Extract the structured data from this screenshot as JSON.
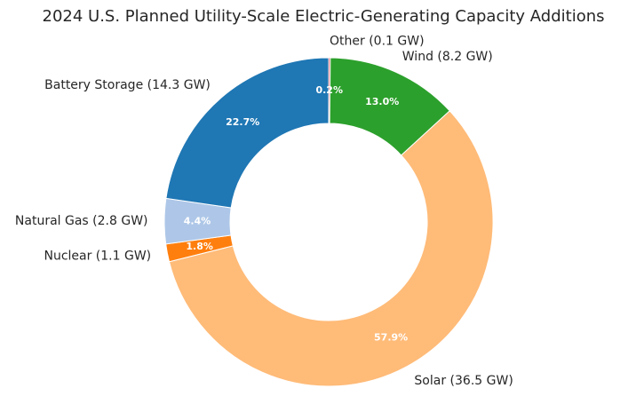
{
  "chart_data": {
    "type": "pie",
    "donut": true,
    "title": "2024 U.S. Planned Utility-Scale Electric-Generating Capacity Additions",
    "start_angle_deg": 90,
    "direction": "clockwise",
    "slices": [
      {
        "label": "Other (0.1 GW)",
        "value": 0.1,
        "pct_label": "0.2%",
        "color": "#d62728"
      },
      {
        "label": "Wind (8.2 GW)",
        "value": 8.2,
        "pct_label": "13.0%",
        "color": "#2ca02c"
      },
      {
        "label": "Solar (36.5 GW)",
        "value": 36.5,
        "pct_label": "57.9%",
        "color": "#ffbb78"
      },
      {
        "label": "Nuclear (1.1 GW)",
        "value": 1.1,
        "pct_label": "1.8%",
        "color": "#ff7f0e"
      },
      {
        "label": "Natural Gas (2.8 GW)",
        "value": 2.8,
        "pct_label": "4.4%",
        "color": "#aec7e8"
      },
      {
        "label": "Battery Storage (14.3 GW)",
        "value": 14.3,
        "pct_label": "22.7%",
        "color": "#1f77b4"
      }
    ]
  }
}
